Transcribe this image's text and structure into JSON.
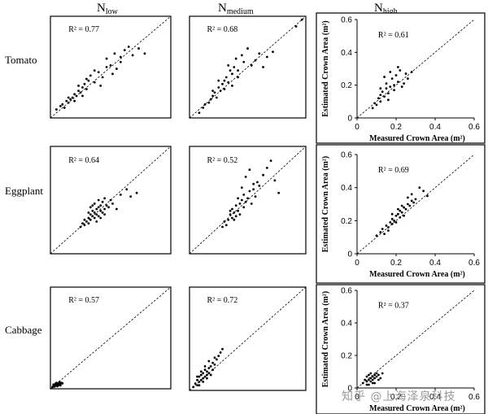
{
  "header": {
    "n_low": {
      "base": "N",
      "sub": "low"
    },
    "n_medium": {
      "base": "N",
      "sub": "medium"
    },
    "n_high": {
      "base": "N",
      "sub": "high"
    }
  },
  "rows": {
    "tomato": "Tomato",
    "eggplant": "Eggplant",
    "cabbage": "Cabbage"
  },
  "watermark": "知乎 @上海泽泉科技",
  "chart_data": [
    {
      "type": "scatter",
      "crop": "Tomato",
      "treatment": "N_low",
      "annotation": "R² = 0.77",
      "xlim": [
        0,
        0.6
      ],
      "ylim": [
        0,
        0.6
      ],
      "identity_line": true,
      "x": [
        0.03,
        0.05,
        0.06,
        0.07,
        0.08,
        0.09,
        0.1,
        0.11,
        0.12,
        0.13,
        0.14,
        0.15,
        0.16,
        0.17,
        0.18,
        0.19,
        0.2,
        0.22,
        0.24,
        0.26,
        0.28,
        0.3,
        0.32,
        0.33,
        0.35,
        0.37,
        0.39,
        0.41,
        0.44,
        0.47,
        0.09,
        0.12,
        0.14,
        0.16,
        0.18,
        0.22,
        0.25,
        0.28,
        0.31,
        0.35
      ],
      "y": [
        0.05,
        0.07,
        0.08,
        0.06,
        0.1,
        0.09,
        0.11,
        0.12,
        0.14,
        0.13,
        0.16,
        0.15,
        0.18,
        0.2,
        0.17,
        0.22,
        0.25,
        0.21,
        0.27,
        0.24,
        0.3,
        0.31,
        0.38,
        0.29,
        0.36,
        0.4,
        0.42,
        0.37,
        0.41,
        0.38,
        0.12,
        0.1,
        0.19,
        0.13,
        0.23,
        0.28,
        0.19,
        0.35,
        0.26,
        0.33
      ]
    },
    {
      "type": "scatter",
      "crop": "Tomato",
      "treatment": "N_medium",
      "annotation": "R² = 0.68",
      "xlim": [
        0,
        0.6
      ],
      "ylim": [
        0,
        0.6
      ],
      "x": [
        0.05,
        0.07,
        0.08,
        0.1,
        0.11,
        0.12,
        0.13,
        0.14,
        0.15,
        0.16,
        0.17,
        0.18,
        0.19,
        0.2,
        0.21,
        0.22,
        0.23,
        0.24,
        0.25,
        0.27,
        0.28,
        0.3,
        0.32,
        0.34,
        0.36,
        0.38,
        0.4,
        0.43,
        0.55,
        0.58,
        0.12,
        0.15,
        0.18,
        0.2,
        0.22,
        0.25
      ],
      "y": [
        0.03,
        0.06,
        0.08,
        0.09,
        0.11,
        0.13,
        0.15,
        0.12,
        0.18,
        0.16,
        0.2,
        0.22,
        0.24,
        0.21,
        0.28,
        0.26,
        0.3,
        0.35,
        0.28,
        0.37,
        0.33,
        0.41,
        0.31,
        0.34,
        0.38,
        0.3,
        0.36,
        0.39,
        0.54,
        0.58,
        0.16,
        0.22,
        0.17,
        0.31,
        0.19,
        0.24
      ]
    },
    {
      "type": "scatter",
      "crop": "Tomato",
      "treatment": "N_high",
      "annotation": "R² = 0.61",
      "xlim": [
        0,
        0.6
      ],
      "ylim": [
        0,
        0.6
      ],
      "xticks": [
        "0",
        "0.2",
        "0.4",
        "0.6"
      ],
      "yticks": [
        "0",
        "0.2",
        "0.4",
        "0.6"
      ],
      "xlabel": "Measured Crown Area (m²)",
      "ylabel": "Estimated Crown Area (m²)",
      "x": [
        0.08,
        0.09,
        0.1,
        0.11,
        0.12,
        0.12,
        0.13,
        0.14,
        0.15,
        0.15,
        0.16,
        0.17,
        0.18,
        0.19,
        0.2,
        0.21,
        0.22,
        0.23,
        0.25,
        0.26,
        0.28,
        0.12,
        0.14,
        0.17,
        0.19,
        0.21,
        0.24,
        0.16
      ],
      "y": [
        0.06,
        0.09,
        0.08,
        0.12,
        0.1,
        0.14,
        0.16,
        0.13,
        0.18,
        0.21,
        0.15,
        0.19,
        0.24,
        0.2,
        0.26,
        0.22,
        0.29,
        0.19,
        0.27,
        0.24,
        0.28,
        0.18,
        0.25,
        0.28,
        0.17,
        0.31,
        0.21,
        0.11
      ]
    },
    {
      "type": "scatter",
      "crop": "Eggplant",
      "treatment": "N_low",
      "annotation": "R² = 0.64",
      "xlim": [
        0,
        0.6
      ],
      "ylim": [
        0,
        0.6
      ],
      "x": [
        0.15,
        0.16,
        0.17,
        0.17,
        0.18,
        0.19,
        0.19,
        0.2,
        0.2,
        0.21,
        0.21,
        0.22,
        0.22,
        0.23,
        0.23,
        0.24,
        0.24,
        0.25,
        0.25,
        0.26,
        0.26,
        0.27,
        0.27,
        0.28,
        0.29,
        0.3,
        0.31,
        0.33,
        0.35,
        0.38,
        0.4,
        0.43,
        0.2,
        0.22,
        0.24,
        0.19,
        0.21,
        0.23,
        0.25,
        0.27
      ],
      "y": [
        0.15,
        0.17,
        0.16,
        0.19,
        0.18,
        0.2,
        0.17,
        0.22,
        0.19,
        0.21,
        0.24,
        0.2,
        0.23,
        0.25,
        0.22,
        0.26,
        0.21,
        0.24,
        0.27,
        0.23,
        0.29,
        0.25,
        0.31,
        0.27,
        0.26,
        0.3,
        0.28,
        0.25,
        0.33,
        0.36,
        0.32,
        0.34,
        0.26,
        0.28,
        0.3,
        0.23,
        0.27,
        0.18,
        0.2,
        0.22
      ]
    },
    {
      "type": "scatter",
      "crop": "Eggplant",
      "treatment": "N_medium",
      "annotation": "R² = 0.52",
      "xlim": [
        0,
        0.6
      ],
      "ylim": [
        0,
        0.6
      ],
      "x": [
        0.17,
        0.18,
        0.19,
        0.2,
        0.21,
        0.22,
        0.22,
        0.23,
        0.24,
        0.24,
        0.25,
        0.26,
        0.26,
        0.27,
        0.28,
        0.28,
        0.29,
        0.3,
        0.31,
        0.32,
        0.33,
        0.34,
        0.35,
        0.36,
        0.38,
        0.4,
        0.42,
        0.44,
        0.46,
        0.25,
        0.27,
        0.29,
        0.31,
        0.33,
        0.23,
        0.21
      ],
      "y": [
        0.15,
        0.18,
        0.16,
        0.19,
        0.22,
        0.2,
        0.25,
        0.23,
        0.21,
        0.27,
        0.24,
        0.28,
        0.22,
        0.3,
        0.26,
        0.33,
        0.29,
        0.31,
        0.35,
        0.28,
        0.36,
        0.32,
        0.4,
        0.38,
        0.44,
        0.48,
        0.52,
        0.41,
        0.34,
        0.31,
        0.37,
        0.43,
        0.47,
        0.39,
        0.19,
        0.24
      ]
    },
    {
      "type": "scatter",
      "crop": "Eggplant",
      "treatment": "N_high",
      "annotation": "R² = 0.69",
      "xlim": [
        0,
        0.6
      ],
      "ylim": [
        0,
        0.6
      ],
      "xticks": [
        "0",
        "0.2",
        "0.4",
        "0.6"
      ],
      "yticks": [
        "0",
        "0.2",
        "0.4",
        "0.6"
      ],
      "xlabel": "Measured Crown Area (m²)",
      "ylabel": "Estimated Crown Area (m²)",
      "x": [
        0.1,
        0.12,
        0.13,
        0.14,
        0.15,
        0.16,
        0.17,
        0.18,
        0.18,
        0.19,
        0.2,
        0.2,
        0.21,
        0.22,
        0.22,
        0.23,
        0.24,
        0.24,
        0.25,
        0.26,
        0.27,
        0.28,
        0.29,
        0.3,
        0.32,
        0.34,
        0.36,
        0.18,
        0.21,
        0.23,
        0.26,
        0.28,
        0.16
      ],
      "y": [
        0.11,
        0.13,
        0.15,
        0.12,
        0.17,
        0.16,
        0.19,
        0.18,
        0.21,
        0.2,
        0.23,
        0.19,
        0.24,
        0.22,
        0.26,
        0.25,
        0.28,
        0.23,
        0.27,
        0.3,
        0.29,
        0.32,
        0.31,
        0.33,
        0.4,
        0.38,
        0.35,
        0.24,
        0.27,
        0.29,
        0.34,
        0.36,
        0.14
      ]
    },
    {
      "type": "scatter",
      "crop": "Cabbage",
      "treatment": "N_low",
      "annotation": "R² = 0.57",
      "xlim": [
        0,
        0.6
      ],
      "ylim": [
        0,
        0.6
      ],
      "x": [
        0.01,
        0.015,
        0.02,
        0.02,
        0.025,
        0.03,
        0.03,
        0.035,
        0.04,
        0.04,
        0.045,
        0.05,
        0.055,
        0.06,
        0.025,
        0.035,
        0.045,
        0.015,
        0.05,
        0.03
      ],
      "y": [
        0.01,
        0.015,
        0.012,
        0.022,
        0.02,
        0.018,
        0.028,
        0.025,
        0.022,
        0.032,
        0.03,
        0.028,
        0.035,
        0.032,
        0.03,
        0.015,
        0.04,
        0.025,
        0.02,
        0.035
      ]
    },
    {
      "type": "scatter",
      "crop": "Cabbage",
      "treatment": "N_medium",
      "annotation": "R² = 0.72",
      "xlim": [
        0,
        0.6
      ],
      "ylim": [
        0,
        0.6
      ],
      "x": [
        0.02,
        0.03,
        0.04,
        0.04,
        0.05,
        0.05,
        0.06,
        0.06,
        0.07,
        0.07,
        0.08,
        0.08,
        0.09,
        0.09,
        0.1,
        0.1,
        0.11,
        0.12,
        0.12,
        0.13,
        0.14,
        0.15,
        0.16,
        0.17,
        0.05,
        0.07,
        0.09,
        0.11,
        0.13,
        0.04,
        0.06,
        0.08,
        0.1
      ],
      "y": [
        0.02,
        0.04,
        0.03,
        0.06,
        0.05,
        0.08,
        0.06,
        0.09,
        0.07,
        0.1,
        0.08,
        0.12,
        0.09,
        0.11,
        0.13,
        0.1,
        0.14,
        0.12,
        0.16,
        0.15,
        0.18,
        0.2,
        0.22,
        0.24,
        0.03,
        0.05,
        0.07,
        0.09,
        0.19,
        0.08,
        0.11,
        0.14,
        0.17
      ]
    },
    {
      "type": "scatter",
      "crop": "Cabbage",
      "treatment": "N_high",
      "annotation": "R² = 0.37",
      "xlim": [
        0,
        0.6
      ],
      "ylim": [
        0,
        0.6
      ],
      "xticks": [
        "0",
        "0.2",
        "0.4",
        "0.6"
      ],
      "yticks": [
        "0",
        "0.2",
        "0.4",
        "0.6"
      ],
      "xlabel": "Measured Crown Area (m²)",
      "ylabel": "Estimated Crown Area (m²)",
      "x": [
        0.03,
        0.04,
        0.05,
        0.05,
        0.06,
        0.06,
        0.07,
        0.07,
        0.08,
        0.08,
        0.09,
        0.09,
        0.1,
        0.1,
        0.11,
        0.12,
        0.13,
        0.05,
        0.07,
        0.09,
        0.11,
        0.06,
        0.08
      ],
      "y": [
        0.03,
        0.05,
        0.04,
        0.07,
        0.05,
        0.08,
        0.06,
        0.09,
        0.07,
        0.05,
        0.08,
        0.06,
        0.09,
        0.07,
        0.08,
        0.06,
        0.09,
        0.02,
        0.04,
        0.03,
        0.05,
        0.02,
        0.03
      ]
    }
  ]
}
